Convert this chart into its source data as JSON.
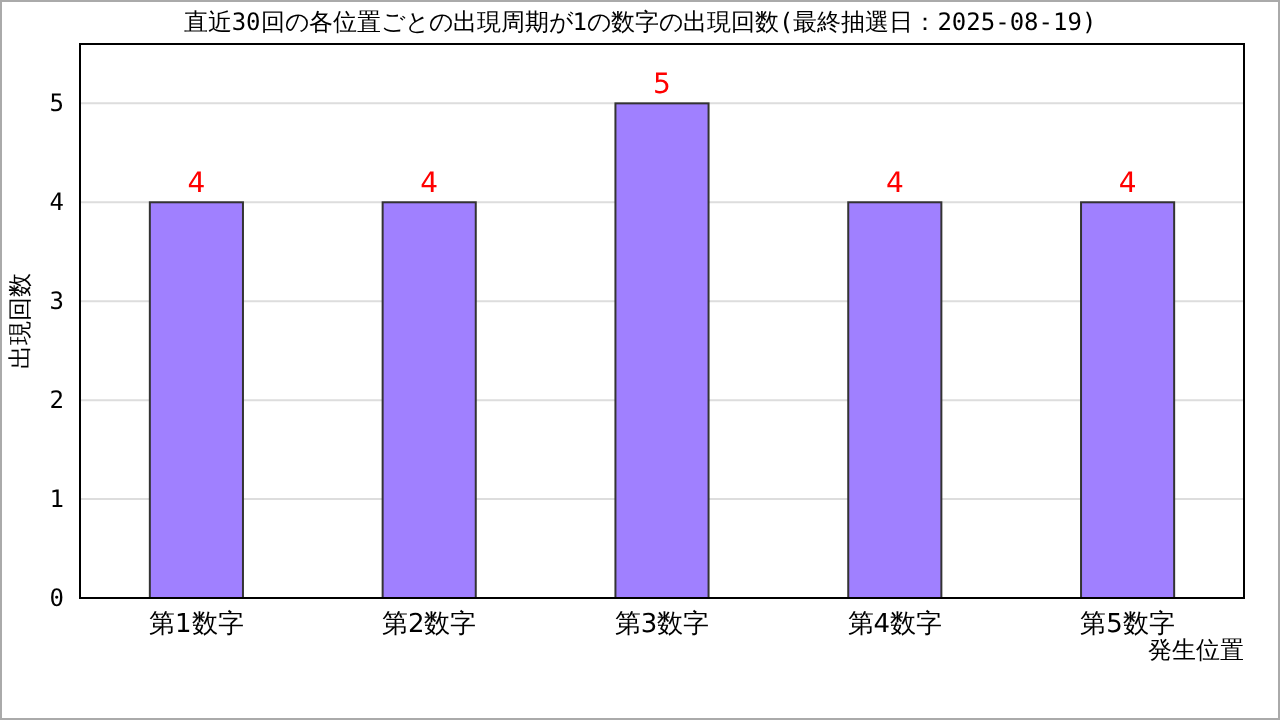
{
  "chart_data": {
    "type": "bar",
    "title": "直近30回の各位置ごとの出現周期が1の数字の出現回数(最終抽選日：2025-08-19)",
    "xlabel": "発生位置",
    "ylabel": "出現回数",
    "categories": [
      "第1数字",
      "第2数字",
      "第3数字",
      "第4数字",
      "第5数字"
    ],
    "values": [
      4,
      4,
      5,
      4,
      4
    ],
    "color": "#a080ff",
    "ylim": [
      0,
      5.6
    ],
    "yticks": [
      0,
      1,
      2,
      3,
      4,
      5
    ],
    "grid": "y",
    "data_labels": true
  }
}
